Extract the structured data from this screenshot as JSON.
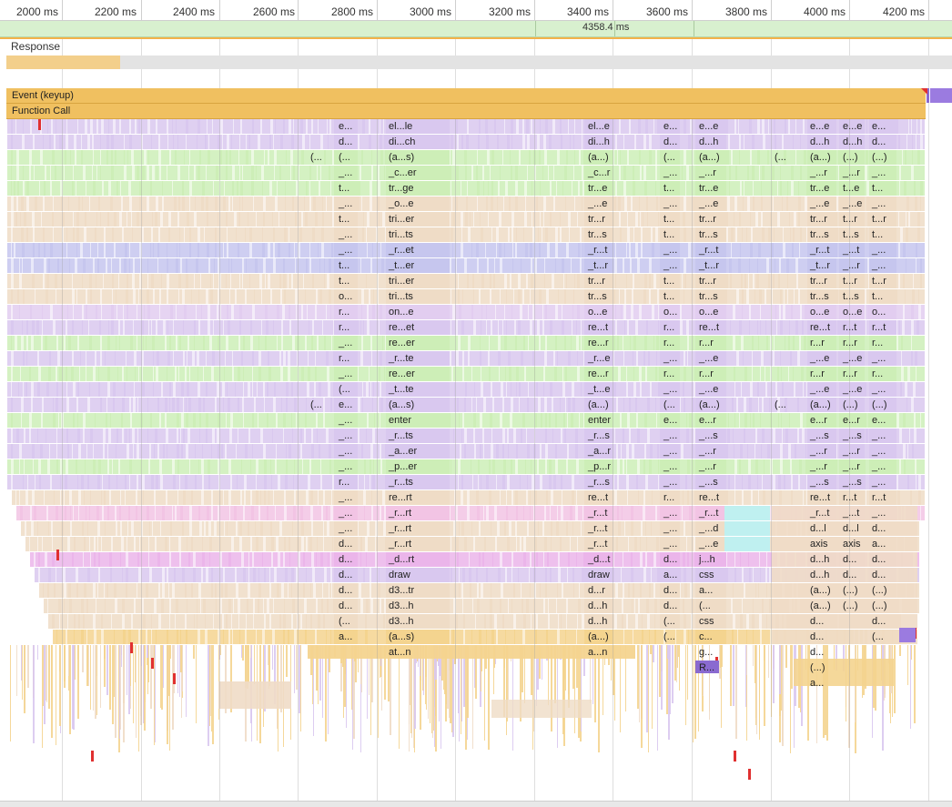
{
  "ruler": {
    "ticks": [
      "2000 ms",
      "2200 ms",
      "2400 ms",
      "2600 ms",
      "2800 ms",
      "3000 ms",
      "3200 ms",
      "3400 ms",
      "3600 ms",
      "3800 ms",
      "4000 ms",
      "4200 ms"
    ]
  },
  "frame": {
    "duration": "4358.4 ms"
  },
  "response": {
    "label": "Response"
  },
  "event_bar": {
    "label": "Event (keyup)"
  },
  "function_bar": {
    "label": "Function Call"
  },
  "colors": {
    "purple": "#d9c8ef",
    "lilac": "#e2cdf0",
    "green": "#cdeeb7",
    "peach": "#efdcc6",
    "blue": "#c6c6ee",
    "pink": "#f2c4e4",
    "magenta": "#ebb5ea",
    "cyan": "#bff0f0",
    "yellow": "#f4d48f",
    "orange": "#f0c060",
    "grid": "#cfcfcf",
    "red": "#e03030"
  },
  "columns": [
    {
      "name": "col-a",
      "labels": [
        "e...",
        "d...",
        "(...",
        "_...",
        "t...",
        "_...",
        "t...",
        "_...",
        "_...",
        "t...",
        "t...",
        "o...",
        "r...",
        "r...",
        "_...",
        "r...",
        "_...",
        "(...",
        "e...",
        "_...",
        "_...",
        "_...",
        "_...",
        "r...",
        "_...",
        "_...",
        "_...",
        "d...",
        "d...",
        "d...",
        "d...",
        "d...",
        "(...",
        "a..."
      ]
    },
    {
      "name": "col-b",
      "labels": [
        "el...le",
        "di...ch",
        "(a...s)",
        "_c...er",
        "tr...ge",
        "_o...e",
        "tri...er",
        "tri...ts",
        "_r...et",
        "_t...er",
        "tri...er",
        "tri...ts",
        "on...e",
        "re...et",
        "re...er",
        "_r...te",
        "re...er",
        "_t...te",
        "(a...s)",
        "enter",
        "_r...ts",
        "_a...er",
        "_p...er",
        "_r...ts",
        "re...rt",
        "_r...rt",
        "_r...rt",
        "_r...rt",
        "_d...rt",
        "draw",
        "d3...tr",
        "d3...h",
        "d3...h",
        "(a...s)",
        "at...n"
      ]
    },
    {
      "name": "col-c",
      "labels": [
        "el...e",
        "di...h",
        "(a...)",
        "_c...r",
        "tr...e",
        "_...e",
        "tr...r",
        "tr...s",
        "_r...t",
        "_t...r",
        "tr...r",
        "tr...s",
        "o...e",
        "re...t",
        "re...r",
        "_r...e",
        "re...r",
        "_t...e",
        "(a...)",
        "enter",
        "_r...s",
        "_a...r",
        "_p...r",
        "_r...s",
        "re...t",
        "_r...t",
        "_r...t",
        "_r...t",
        "_d...t",
        "draw",
        "d...r",
        "d...h",
        "d...h",
        "(a...)",
        "a...n"
      ]
    },
    {
      "name": "col-d",
      "labels": [
        "e...",
        "d...",
        "(...",
        "_...",
        "t...",
        "_...",
        "t...",
        "t...",
        "_...",
        "_...",
        "t...",
        "t...",
        "o...",
        "r...",
        "r...",
        "_...",
        "r...",
        "_...",
        "(...",
        "e...",
        "_...",
        "_...",
        "_...",
        "_...",
        "r...",
        "_...",
        "_...",
        "_...",
        "d...",
        "a...",
        "d...",
        "d...",
        "(...",
        "(..."
      ]
    },
    {
      "name": "col-e",
      "labels": [
        "e...e",
        "d...h",
        "(a...)",
        "_...r",
        "tr...e",
        "_...e",
        "tr...r",
        "tr...s",
        "_r...t",
        "_t...r",
        "tr...r",
        "tr...s",
        "o...e",
        "re...t",
        "r...r",
        "_...e",
        "r...r",
        "_...e",
        "(a...)",
        "e...r",
        "_...s",
        "_...r",
        "_...r",
        "_...s",
        "re...t",
        "_r...t",
        "_...d",
        "_...e",
        "j...h",
        "css",
        "a...",
        "(...",
        "css",
        "c...",
        "g...",
        "R..."
      ]
    },
    {
      "name": "col-f",
      "labels": [
        "e...e",
        "d...h",
        "(a...)",
        "_...r",
        "tr...e",
        "_...e",
        "tr...r",
        "tr...s",
        "_r...t",
        "_t...r",
        "tr...r",
        "tr...s",
        "o...e",
        "re...t",
        "r...r",
        "_...e",
        "r...r",
        "_...e",
        "(a...)",
        "e...r",
        "_...s",
        "_...r",
        "_...r",
        "_...s",
        "re...t",
        "_r...t",
        "d...l",
        "axis",
        "d...h",
        "d...h",
        "(a...)",
        "(a...)",
        "d...",
        "d...",
        "d...",
        "(...)",
        "a..."
      ]
    },
    {
      "name": "col-g",
      "labels": [
        "e...e",
        "d...h",
        "(...)",
        "_...r",
        "t...e",
        "_...e",
        "t...r",
        "t...s",
        "_...t",
        "_...r",
        "t...r",
        "t...s",
        "o...e",
        "r...t",
        "r...r",
        "_...e",
        "r...r",
        "_...e",
        "(...)",
        "e...r",
        "_...s",
        "_...r",
        "_...r",
        "_...s",
        "r...t",
        "_...t",
        "d...l",
        "axis",
        "d...",
        "d...",
        "(...)",
        "(...)"
      ]
    },
    {
      "name": "col-h",
      "labels": [
        "e...",
        "d...",
        "(...)",
        "_...",
        "t...",
        "_...",
        "t...r",
        "t...",
        "_...",
        "_...",
        "t...r",
        "t...",
        "o...",
        "r...t",
        "r...",
        "_...",
        "r...",
        "_...",
        "(...)",
        "e...",
        "_...",
        "_...",
        "_...",
        "_...",
        "r...t",
        "_...",
        "d...",
        "a...",
        "d...",
        "d...",
        "(...)",
        "(...)",
        "d...",
        "(..."
      ]
    },
    {
      "name": "col-i",
      "labels": [
        "(...",
        "(..."
      ]
    },
    {
      "name": "col-j",
      "labels": [
        "(...",
        "(..."
      ]
    }
  ]
}
